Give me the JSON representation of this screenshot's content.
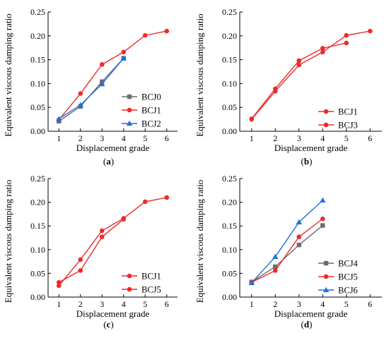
{
  "series_styles": {
    "BCJ0": {
      "color": "#6d6d6d",
      "marker": "square"
    },
    "BCJ1": {
      "color": "#ee2a2a",
      "marker": "circle"
    },
    "BCJ2": {
      "color": "#1f6fe0",
      "marker": "triangle"
    },
    "BCJ3": {
      "color": "#ee2a2a",
      "marker": "circle"
    },
    "BCJ4": {
      "color": "#6d6d6d",
      "marker": "square"
    },
    "BCJ5": {
      "color": "#ee2a2a",
      "marker": "circle"
    },
    "BCJ6": {
      "color": "#1f6fe0",
      "marker": "triangle"
    }
  },
  "chart_data": [
    {
      "panel": "a",
      "type": "line",
      "xlabel": "Displacement grade",
      "ylabel": "Equivalent viscous damping ratio",
      "xlim": [
        0.5,
        6.5
      ],
      "ylim": [
        0,
        0.25
      ],
      "xticks": [
        1,
        2,
        3,
        4,
        5,
        6
      ],
      "yticks": [
        "0.00",
        "0.05",
        "0.10",
        "0.15",
        "0.20",
        "0.25"
      ],
      "legend_position": "bottom-right",
      "series": [
        {
          "name": "BCJ0",
          "x": [
            1,
            2,
            3,
            4
          ],
          "values": [
            0.021,
            0.052,
            0.104,
            0.153
          ]
        },
        {
          "name": "BCJ1",
          "x": [
            1,
            2,
            3,
            4,
            5,
            6
          ],
          "values": [
            0.024,
            0.079,
            0.14,
            0.166,
            0.201,
            0.21
          ]
        },
        {
          "name": "BCJ2",
          "x": [
            1,
            2,
            3,
            4
          ],
          "values": [
            0.026,
            0.055,
            0.099,
            0.153
          ]
        }
      ]
    },
    {
      "panel": "b",
      "type": "line",
      "xlabel": "Displacement grade",
      "ylabel": "Equivalent viscous damping ratio",
      "xlim": [
        0.5,
        6.5
      ],
      "ylim": [
        0,
        0.25
      ],
      "xticks": [
        1,
        2,
        3,
        4,
        5,
        6
      ],
      "yticks": [
        "0.00",
        "0.05",
        "0.10",
        "0.15",
        "0.20",
        "0.25"
      ],
      "legend_position": "bottom-right",
      "series": [
        {
          "name": "BCJ1",
          "x": [
            1,
            2,
            3,
            4,
            5,
            6
          ],
          "values": [
            0.025,
            0.084,
            0.139,
            0.166,
            0.201,
            0.21
          ]
        },
        {
          "name": "BCJ3",
          "x": [
            1,
            2,
            3,
            4,
            5
          ],
          "values": [
            0.026,
            0.089,
            0.148,
            0.174,
            0.185
          ]
        }
      ]
    },
    {
      "panel": "c",
      "type": "line",
      "xlabel": "Displacement grade",
      "ylabel": "Equivalent viscous damping ratio",
      "xlim": [
        0.5,
        6.5
      ],
      "ylim": [
        0,
        0.25
      ],
      "xticks": [
        1,
        2,
        3,
        4,
        5,
        6
      ],
      "yticks": [
        "0.00",
        "0.05",
        "0.10",
        "0.15",
        "0.20",
        "0.25"
      ],
      "legend_position": "bottom-right",
      "series": [
        {
          "name": "BCJ1",
          "x": [
            1,
            2,
            3,
            4,
            5,
            6
          ],
          "values": [
            0.024,
            0.079,
            0.14,
            0.166,
            0.201,
            0.21
          ]
        },
        {
          "name": "BCJ5",
          "x": [
            1,
            2,
            3,
            4
          ],
          "values": [
            0.031,
            0.056,
            0.127,
            0.164
          ]
        }
      ]
    },
    {
      "panel": "d",
      "type": "line",
      "xlabel": "Displacement grade",
      "ylabel": "Equivalent viscous damping ratio",
      "xlim": [
        0.5,
        6.5
      ],
      "ylim": [
        0,
        0.25
      ],
      "xticks": [
        1,
        2,
        3,
        4,
        5,
        6
      ],
      "yticks": [
        "0.00",
        "0.05",
        "0.10",
        "0.15",
        "0.20",
        "0.25"
      ],
      "legend_position": "bottom-right",
      "series": [
        {
          "name": "BCJ4",
          "x": [
            1,
            2,
            3,
            4
          ],
          "values": [
            0.032,
            0.064,
            0.11,
            0.151
          ]
        },
        {
          "name": "BCJ5",
          "x": [
            1,
            2,
            3,
            4
          ],
          "values": [
            0.031,
            0.056,
            0.127,
            0.165
          ]
        },
        {
          "name": "BCJ6",
          "x": [
            1,
            2,
            3,
            4
          ],
          "values": [
            0.03,
            0.085,
            0.158,
            0.204
          ]
        }
      ]
    }
  ]
}
